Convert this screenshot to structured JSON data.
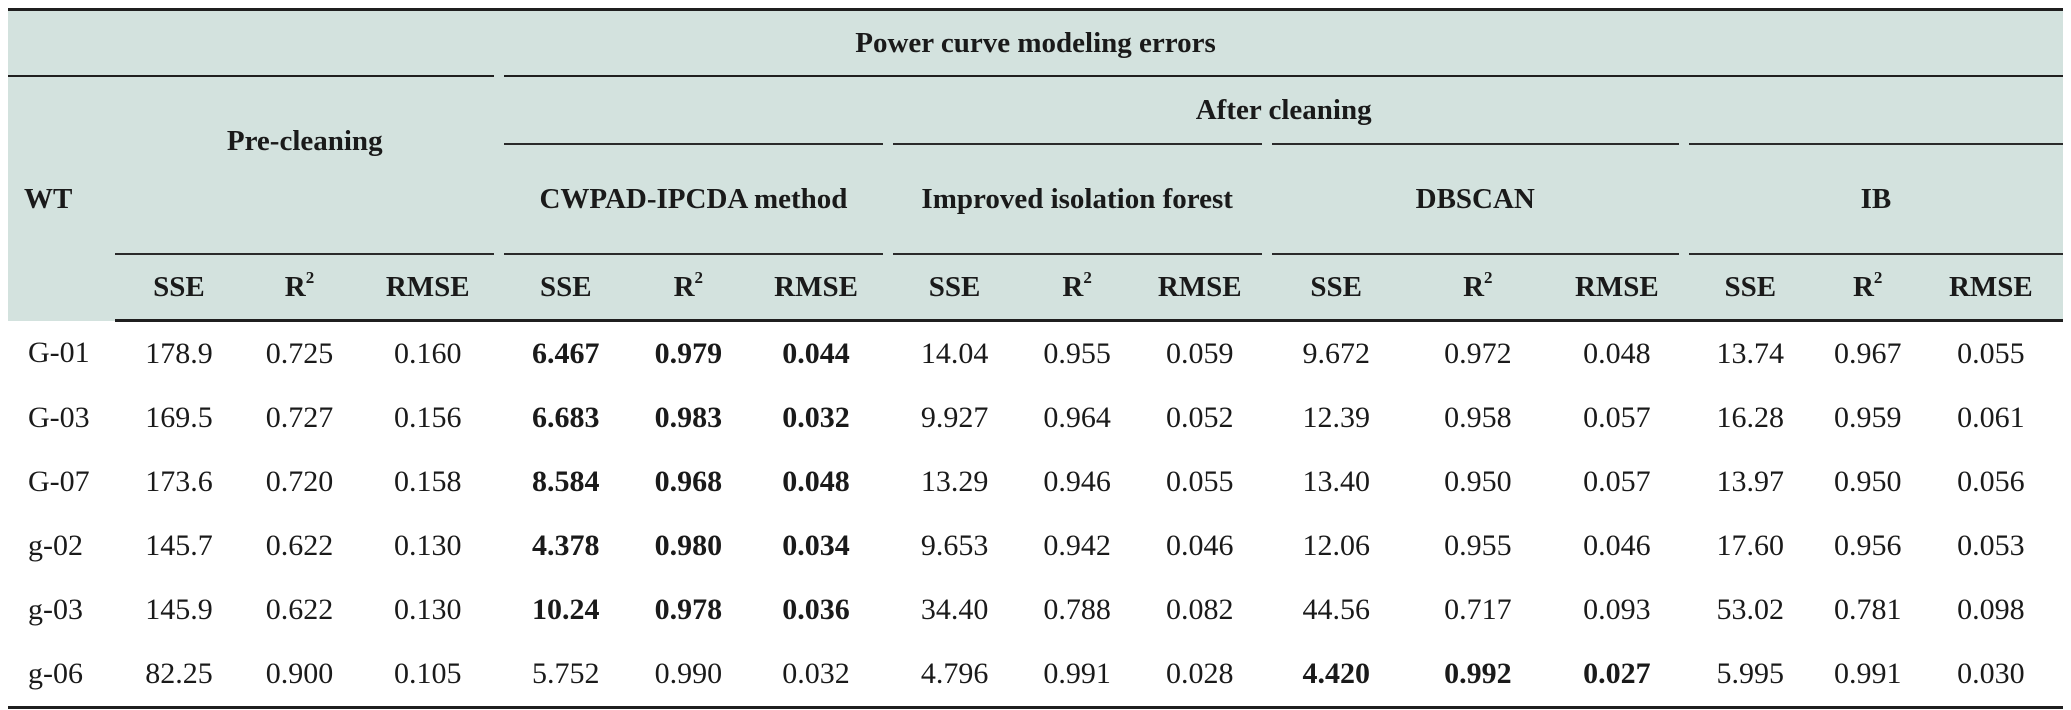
{
  "table": {
    "title": "Power curve modeling errors",
    "wt_label": "WT",
    "pre_cleaning": "Pre-cleaning",
    "after_cleaning": "After cleaning",
    "methods": [
      "CWPAD-IPCDA method",
      "Improved isolation forest",
      "DBSCAN",
      "IB"
    ],
    "cols": {
      "sse": "SSE",
      "r": "R",
      "r_sup": "2",
      "rmse": "RMSE"
    },
    "rows": [
      {
        "wt": "G-01",
        "v": [
          "178.9",
          "0.725",
          "0.160",
          "6.467",
          "0.979",
          "0.044",
          "14.04",
          "0.955",
          "0.059",
          "9.672",
          "0.972",
          "0.048",
          "13.74",
          "0.967",
          "0.055"
        ],
        "bold_group": 1
      },
      {
        "wt": "G-03",
        "v": [
          "169.5",
          "0.727",
          "0.156",
          "6.683",
          "0.983",
          "0.032",
          "9.927",
          "0.964",
          "0.052",
          "12.39",
          "0.958",
          "0.057",
          "16.28",
          "0.959",
          "0.061"
        ],
        "bold_group": 1
      },
      {
        "wt": "G-07",
        "v": [
          "173.6",
          "0.720",
          "0.158",
          "8.584",
          "0.968",
          "0.048",
          "13.29",
          "0.946",
          "0.055",
          "13.40",
          "0.950",
          "0.057",
          "13.97",
          "0.950",
          "0.056"
        ],
        "bold_group": 1
      },
      {
        "wt": "g-02",
        "v": [
          "145.7",
          "0.622",
          "0.130",
          "4.378",
          "0.980",
          "0.034",
          "9.653",
          "0.942",
          "0.046",
          "12.06",
          "0.955",
          "0.046",
          "17.60",
          "0.956",
          "0.053"
        ],
        "bold_group": 1
      },
      {
        "wt": "g-03",
        "v": [
          "145.9",
          "0.622",
          "0.130",
          "10.24",
          "0.978",
          "0.036",
          "34.40",
          "0.788",
          "0.082",
          "44.56",
          "0.717",
          "0.093",
          "53.02",
          "0.781",
          "0.098"
        ],
        "bold_group": 1
      },
      {
        "wt": "g-06",
        "v": [
          "82.25",
          "0.900",
          "0.105",
          "5.752",
          "0.990",
          "0.032",
          "4.796",
          "0.991",
          "0.028",
          "4.420",
          "0.992",
          "0.027",
          "5.995",
          "0.991",
          "0.030"
        ],
        "bold_group": 3
      }
    ]
  }
}
